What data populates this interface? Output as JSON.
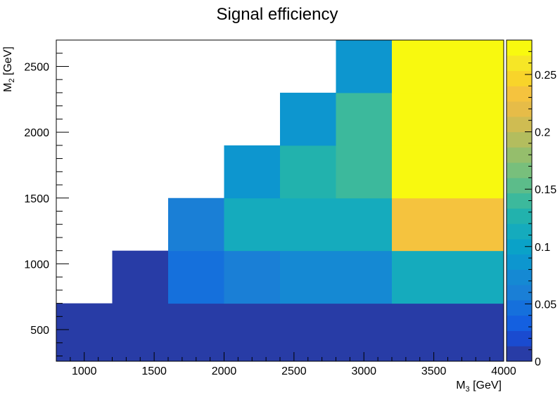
{
  "chart_data": {
    "type": "heatmap",
    "title": "Signal efficiency",
    "xlabel": {
      "base": "M",
      "sub": "3",
      "rest": " [GeV]"
    },
    "ylabel": {
      "base": "M",
      "sub": "2",
      "rest": " [GeV]"
    },
    "xlim": [
      800,
      4000
    ],
    "ylim": [
      260,
      2700
    ],
    "x_edges": [
      800,
      1200,
      1600,
      2000,
      2400,
      2800,
      3200,
      4000
    ],
    "y_edges": [
      260,
      700,
      1100,
      1500,
      1900,
      2300,
      2700
    ],
    "x_ticks": [
      1000,
      1500,
      2000,
      2500,
      3000,
      3500,
      4000
    ],
    "y_ticks": [
      500,
      1000,
      1500,
      2000,
      2500
    ],
    "z_range": [
      0,
      0.28
    ],
    "z_ticks": [
      {
        "value": 0,
        "label": "0"
      },
      {
        "value": 0.05,
        "label": "0.05"
      },
      {
        "value": 0.1,
        "label": "0.1"
      },
      {
        "value": 0.15,
        "label": "0.15"
      },
      {
        "value": 0.2,
        "label": "0.2"
      },
      {
        "value": 0.25,
        "label": "0.25"
      }
    ],
    "colormap": [
      "#283ca6",
      "#1a4bd0",
      "#1460e0",
      "#1570dc",
      "#1a7fd6",
      "#1589d3",
      "#0d96cf",
      "#0aa2c8",
      "#15abbd",
      "#22b2ad",
      "#3cb99c",
      "#5cbc8a",
      "#78bf7c",
      "#95be6c",
      "#b3bd5e",
      "#cfbc52",
      "#e6bc48",
      "#f5c33e",
      "#f8d42a",
      "#f6e626",
      "#f8f90f"
    ],
    "cells": [
      [
        0.005,
        0.005,
        0.005,
        0.005,
        0.005,
        0.005,
        0.005
      ],
      [
        null,
        0.005,
        0.043,
        0.058,
        0.075,
        0.075,
        0.107
      ],
      [
        null,
        null,
        0.058,
        0.108,
        0.108,
        0.117,
        0.235
      ],
      [
        null,
        null,
        null,
        0.085,
        0.125,
        0.135,
        0.27
      ],
      [
        null,
        null,
        null,
        null,
        0.085,
        0.14,
        0.28
      ],
      [
        null,
        null,
        null,
        null,
        null,
        0.09,
        0.28
      ]
    ]
  }
}
